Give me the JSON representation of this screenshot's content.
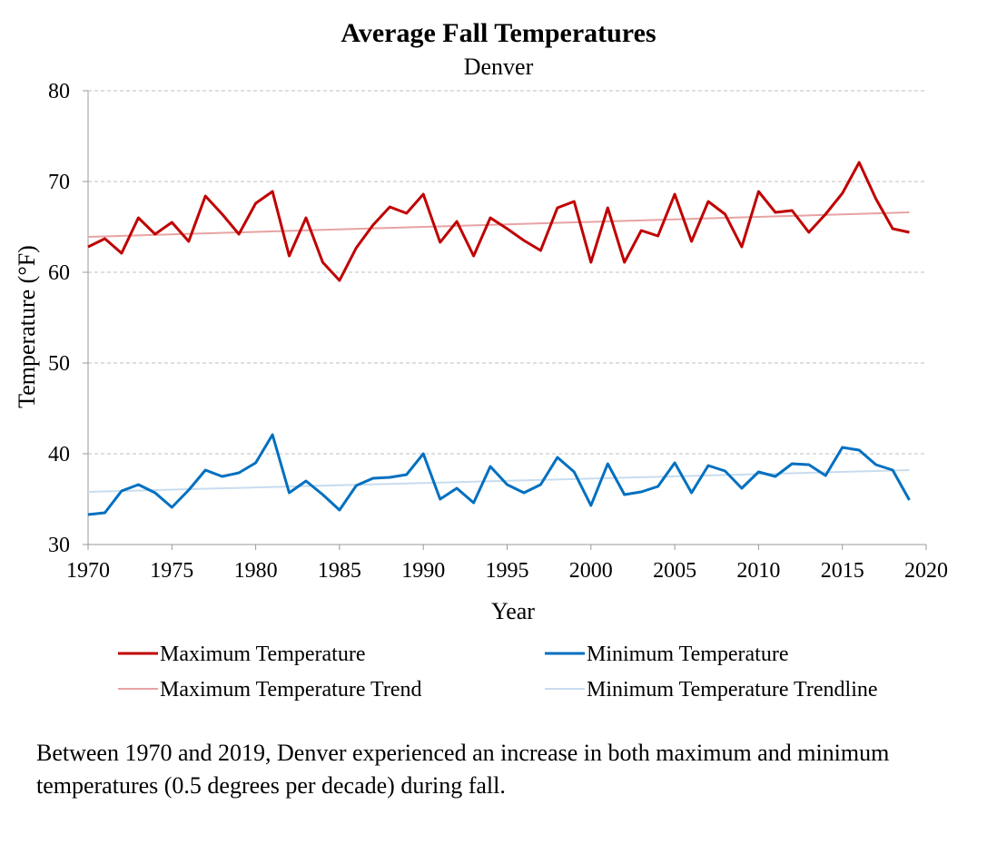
{
  "chart_data": {
    "type": "line",
    "title": "Average Fall Temperatures",
    "subtitle": "Denver",
    "xlabel": "Year",
    "ylabel": "Temperature (°F)",
    "xlim": [
      1970,
      2020
    ],
    "ylim": [
      30,
      80
    ],
    "xticks": [
      1970,
      1975,
      1980,
      1985,
      1990,
      1995,
      2000,
      2005,
      2010,
      2015,
      2020
    ],
    "yticks": [
      30,
      40,
      50,
      60,
      70,
      80
    ],
    "grid": "horizontal-dashed",
    "legend_position": "bottom",
    "x": [
      1970,
      1971,
      1972,
      1973,
      1974,
      1975,
      1976,
      1977,
      1978,
      1979,
      1980,
      1981,
      1982,
      1983,
      1984,
      1985,
      1986,
      1987,
      1988,
      1989,
      1990,
      1991,
      1992,
      1993,
      1994,
      1995,
      1996,
      1997,
      1998,
      1999,
      2000,
      2001,
      2002,
      2003,
      2004,
      2005,
      2006,
      2007,
      2008,
      2009,
      2010,
      2011,
      2012,
      2013,
      2014,
      2015,
      2016,
      2017,
      2018,
      2019
    ],
    "series": [
      {
        "name": "Maximum Temperature",
        "color": "#c00000",
        "values": [
          62.8,
          63.7,
          62.1,
          66.0,
          64.2,
          65.5,
          63.4,
          68.4,
          66.4,
          64.2,
          67.6,
          68.9,
          61.8,
          66.0,
          61.1,
          59.1,
          62.7,
          65.2,
          67.2,
          66.5,
          68.6,
          63.3,
          65.6,
          61.8,
          66.0,
          64.8,
          63.5,
          62.4,
          67.1,
          67.8,
          61.1,
          67.1,
          61.1,
          64.6,
          64.0,
          68.6,
          63.4,
          67.8,
          66.4,
          62.8,
          68.9,
          66.6,
          66.8,
          64.4,
          66.4,
          68.7,
          72.1,
          68.1,
          64.8,
          64.4
        ]
      },
      {
        "name": "Minimum Temperature",
        "color": "#0070c0",
        "values": [
          33.3,
          33.5,
          35.9,
          36.6,
          35.7,
          34.1,
          36.0,
          38.2,
          37.5,
          37.9,
          39.0,
          42.1,
          35.7,
          37.0,
          35.5,
          33.8,
          36.5,
          37.3,
          37.4,
          37.7,
          40.0,
          35.0,
          36.2,
          34.6,
          38.6,
          36.6,
          35.7,
          36.6,
          39.6,
          38.0,
          34.3,
          38.9,
          35.5,
          35.8,
          36.4,
          39.0,
          35.7,
          38.7,
          38.1,
          36.2,
          38.0,
          37.5,
          38.9,
          38.8,
          37.6,
          40.7,
          40.4,
          38.8,
          38.2,
          34.9
        ]
      },
      {
        "name": "Maximum Temperature Trend",
        "color": "#e8a3a3",
        "trend": true,
        "x": [
          1970,
          2019
        ],
        "values": [
          63.9,
          66.6
        ]
      },
      {
        "name": "Minimum Temperature Trendline",
        "color": "#c8dcef",
        "trend": true,
        "x": [
          1970,
          2019
        ],
        "values": [
          35.8,
          38.2
        ]
      }
    ]
  },
  "caption": "Between 1970 and 2019, Denver experienced an increase in both maximum and minimum temperatures (0.5 degrees per decade) during fall."
}
